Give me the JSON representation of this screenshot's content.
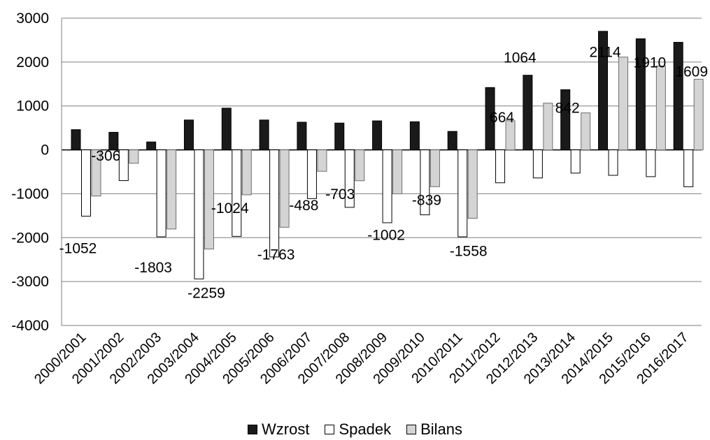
{
  "chart_data": {
    "type": "bar",
    "categories": [
      "2000/2001",
      "2001/2002",
      "2002/2003",
      "2003/2004",
      "2004/2005",
      "2005/2006",
      "2006/2007",
      "2007/2008",
      "2008/2009",
      "2009/2010",
      "2010/2011",
      "2011/2012",
      "2012/2013",
      "2013/2014",
      "2014/2015",
      "2015/2016",
      "2016/2017"
    ],
    "series": [
      {
        "name": "Wzrost",
        "color": "#1a1a1a",
        "values": [
          460,
          400,
          180,
          680,
          950,
          680,
          630,
          610,
          660,
          640,
          420,
          1420,
          1700,
          1370,
          2700,
          2530,
          2450
        ]
      },
      {
        "name": "Spadek",
        "color": "#ffffff",
        "values": [
          -1510,
          -700,
          -1980,
          -2940,
          -1970,
          -2440,
          -1110,
          -1310,
          -1660,
          -1480,
          -1980,
          -750,
          -640,
          -530,
          -580,
          -610,
          -840
        ]
      },
      {
        "name": "Bilans",
        "color": "#d4d4d4",
        "values": [
          -1052,
          -306,
          -1803,
          -2259,
          -1024,
          -1763,
          -488,
          -703,
          -1002,
          -839,
          -1558,
          664,
          1064,
          842,
          2114,
          1910,
          1609
        ]
      }
    ],
    "data_labels": [
      "-1052",
      "-306",
      "-1803",
      "-2259",
      "-1024",
      "-1763",
      "-488",
      "-703",
      "-1002",
      "-839",
      "-1558",
      "664",
      "1064",
      "842",
      "2114",
      "1910",
      "1609"
    ],
    "yticks": [
      "3000",
      "2000",
      "1000",
      "0",
      "-1000",
      "-2000",
      "-3000",
      "-4000"
    ],
    "ylim": [
      -4000,
      3000
    ],
    "grid": true,
    "legend_position": "bottom",
    "title": "",
    "xlabel": "",
    "ylabel": ""
  }
}
